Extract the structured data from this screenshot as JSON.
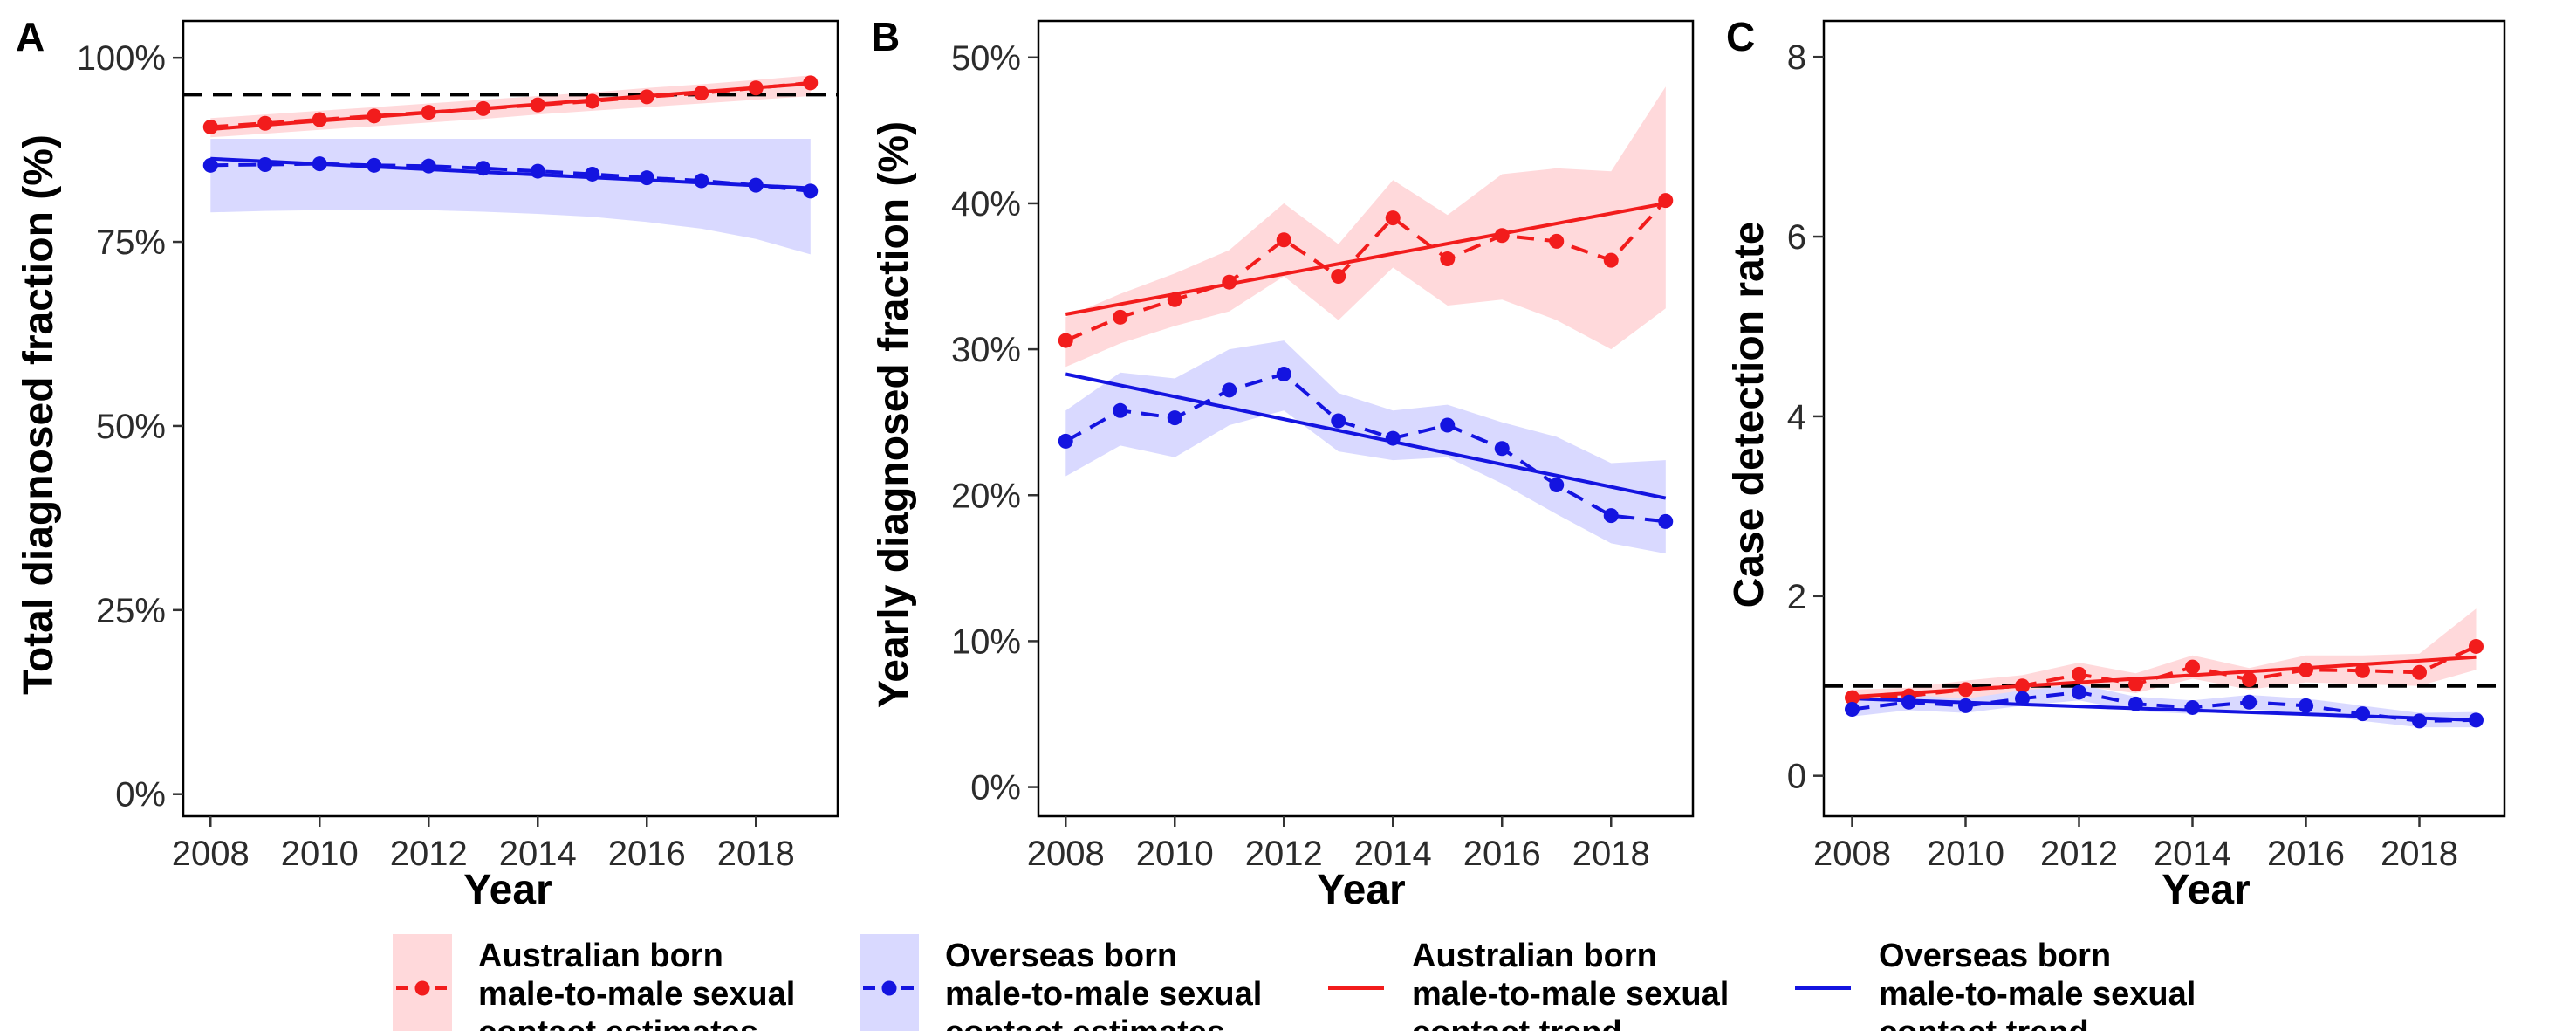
{
  "colors": {
    "australian": "#f21c1c",
    "australian_ribbon": "#ffd9db",
    "overseas": "#1414e0",
    "overseas_ribbon": "#d9d9ff",
    "reference": "#000000"
  },
  "chart_data": [
    {
      "type": "line",
      "panel_label": "A",
      "xlabel": "Year",
      "ylabel": "Total diagnosed fraction  (%)",
      "xlim": [
        2007.5,
        2019.5
      ],
      "ylim": [
        -3,
        105
      ],
      "x_ticks": [
        2008,
        2010,
        2012,
        2014,
        2016,
        2018
      ],
      "x_tick_labels": [
        "2008",
        "2010",
        "2012",
        "2014",
        "2016",
        "2018"
      ],
      "y_ticks": [
        0,
        25,
        50,
        75,
        100
      ],
      "y_tick_labels": [
        "0%",
        "25%",
        "50%",
        "75%",
        "100%"
      ],
      "reference_line": 95,
      "x": [
        2008,
        2009,
        2010,
        2011,
        2012,
        2013,
        2014,
        2015,
        2016,
        2017,
        2018,
        2019
      ],
      "series": [
        {
          "name": "Australian born male-to-male sexual contact estimates",
          "values": [
            90.6,
            91.1,
            91.6,
            92.1,
            92.6,
            93.1,
            93.6,
            94.1,
            94.7,
            95.2,
            95.9,
            96.6
          ],
          "lower": [
            89.2,
            89.7,
            90.2,
            90.7,
            91.2,
            91.7,
            92.3,
            92.8,
            93.3,
            93.8,
            94.3,
            94.8
          ],
          "upper": [
            91.8,
            92.3,
            92.8,
            93.3,
            93.8,
            94.3,
            94.8,
            95.3,
            95.9,
            96.4,
            97.0,
            97.6
          ]
        },
        {
          "name": "Overseas born male-to-male sexual contact estimates",
          "values": [
            85.4,
            85.5,
            85.6,
            85.4,
            85.3,
            85.0,
            84.6,
            84.2,
            83.7,
            83.3,
            82.7,
            81.9
          ],
          "lower": [
            79.0,
            79.2,
            79.3,
            79.3,
            79.3,
            79.1,
            78.8,
            78.4,
            77.7,
            76.8,
            75.4,
            73.3
          ],
          "upper": [
            89.0,
            89.0,
            89.0,
            89.0,
            89.0,
            89.0,
            89.0,
            89.0,
            89.0,
            89.0,
            89.0,
            89.0
          ]
        }
      ],
      "trends": [
        {
          "name": "Australian born male-to-male sexual contact trend",
          "x": [
            2008,
            2019
          ],
          "y": [
            90.3,
            96.5
          ]
        },
        {
          "name": "Overseas born male-to-male sexual contact trend",
          "x": [
            2008,
            2019
          ],
          "y": [
            86.3,
            82.3
          ]
        }
      ]
    },
    {
      "type": "line",
      "panel_label": "B",
      "xlabel": "Year",
      "ylabel": "Yearly diagnosed fraction (%)",
      "xlim": [
        2007.5,
        2019.5
      ],
      "ylim": [
        -2,
        52.5
      ],
      "x_ticks": [
        2008,
        2010,
        2012,
        2014,
        2016,
        2018
      ],
      "x_tick_labels": [
        "2008",
        "2010",
        "2012",
        "2014",
        "2016",
        "2018"
      ],
      "y_ticks": [
        0,
        10,
        20,
        30,
        40,
        50
      ],
      "y_tick_labels": [
        "0%",
        "10%",
        "20%",
        "30%",
        "40%",
        "50%"
      ],
      "x": [
        2008,
        2009,
        2010,
        2011,
        2012,
        2013,
        2014,
        2015,
        2016,
        2017,
        2018,
        2019
      ],
      "series": [
        {
          "name": "Australian born male-to-male sexual contact estimates",
          "values": [
            30.6,
            32.2,
            33.4,
            34.6,
            37.5,
            35.0,
            39.0,
            36.2,
            37.8,
            37.4,
            36.1,
            40.2
          ],
          "lower": [
            28.8,
            30.4,
            31.6,
            32.6,
            35.0,
            32.0,
            35.6,
            33.0,
            33.4,
            32.0,
            30.0,
            32.8
          ],
          "upper": [
            32.2,
            33.8,
            35.2,
            36.8,
            40.0,
            37.2,
            41.6,
            39.2,
            42.0,
            42.4,
            42.2,
            48.0
          ]
        },
        {
          "name": "Overseas born male-to-male sexual contact estimates",
          "values": [
            23.7,
            25.8,
            25.3,
            27.2,
            28.3,
            25.1,
            23.9,
            24.8,
            23.2,
            20.7,
            18.6,
            18.2
          ],
          "lower": [
            21.3,
            23.4,
            22.6,
            24.8,
            25.8,
            23.0,
            22.4,
            22.6,
            20.8,
            18.7,
            16.7,
            16.0
          ],
          "upper": [
            25.8,
            28.4,
            28.0,
            30.0,
            30.6,
            27.0,
            25.8,
            26.2,
            25.0,
            24.0,
            22.2,
            22.4
          ]
        }
      ],
      "trends": [
        {
          "name": "Australian born male-to-male sexual contact trend",
          "x": [
            2008,
            2019
          ],
          "y": [
            32.4,
            40.0
          ]
        },
        {
          "name": "Overseas born male-to-male sexual contact trend",
          "x": [
            2008,
            2019
          ],
          "y": [
            28.3,
            19.8
          ]
        }
      ]
    },
    {
      "type": "line",
      "panel_label": "C",
      "xlabel": "Year",
      "ylabel": "Case detection rate",
      "xlim": [
        2007.5,
        2019.5
      ],
      "ylim": [
        -0.45,
        8.4
      ],
      "x_ticks": [
        2008,
        2010,
        2012,
        2014,
        2016,
        2018
      ],
      "x_tick_labels": [
        "2008",
        "2010",
        "2012",
        "2014",
        "2016",
        "2018"
      ],
      "y_ticks": [
        0,
        2,
        4,
        6,
        8
      ],
      "y_tick_labels": [
        "0",
        "2",
        "4",
        "6",
        "8"
      ],
      "reference_line": 1,
      "x": [
        2008,
        2009,
        2010,
        2011,
        2012,
        2013,
        2014,
        2015,
        2016,
        2017,
        2018,
        2019
      ],
      "series": [
        {
          "name": "Australian born male-to-male sexual contact estimates",
          "values": [
            0.87,
            0.89,
            0.96,
            1.0,
            1.13,
            1.02,
            1.21,
            1.07,
            1.18,
            1.17,
            1.15,
            1.44
          ],
          "lower": [
            0.78,
            0.8,
            0.86,
            0.9,
            1.0,
            0.92,
            1.08,
            0.96,
            1.04,
            1.02,
            1.0,
            1.18
          ],
          "upper": [
            0.96,
            0.98,
            1.06,
            1.12,
            1.26,
            1.14,
            1.34,
            1.2,
            1.34,
            1.34,
            1.36,
            1.86
          ]
        },
        {
          "name": "Overseas born male-to-male sexual contact estimates",
          "values": [
            0.74,
            0.82,
            0.78,
            0.86,
            0.93,
            0.8,
            0.76,
            0.82,
            0.78,
            0.69,
            0.61,
            0.62
          ],
          "lower": [
            0.66,
            0.73,
            0.7,
            0.78,
            0.84,
            0.72,
            0.69,
            0.74,
            0.7,
            0.61,
            0.54,
            0.54
          ],
          "upper": [
            0.82,
            0.9,
            0.86,
            0.95,
            1.02,
            0.88,
            0.84,
            0.9,
            0.86,
            0.78,
            0.7,
            0.71
          ]
        }
      ],
      "trends": [
        {
          "name": "Australian born male-to-male sexual contact trend",
          "x": [
            2008,
            2019
          ],
          "y": [
            0.88,
            1.32
          ]
        },
        {
          "name": "Overseas born male-to-male sexual contact trend",
          "x": [
            2008,
            2019
          ],
          "y": [
            0.86,
            0.62
          ]
        }
      ]
    }
  ],
  "legend": {
    "placement": "bottom",
    "items": [
      {
        "kind": "estimate",
        "series": "australian",
        "lines": [
          "Australian born",
          "male-to-male sexual",
          "contact estimates"
        ]
      },
      {
        "kind": "estimate",
        "series": "overseas",
        "lines": [
          "Overseas born",
          "male-to-male sexual",
          "contact estimates"
        ]
      },
      {
        "kind": "trend",
        "series": "australian",
        "lines": [
          "Australian born",
          "male-to-male sexual",
          "contact trend"
        ]
      },
      {
        "kind": "trend",
        "series": "overseas",
        "lines": [
          "Overseas born",
          "male-to-male sexual",
          "contact trend"
        ]
      }
    ]
  }
}
